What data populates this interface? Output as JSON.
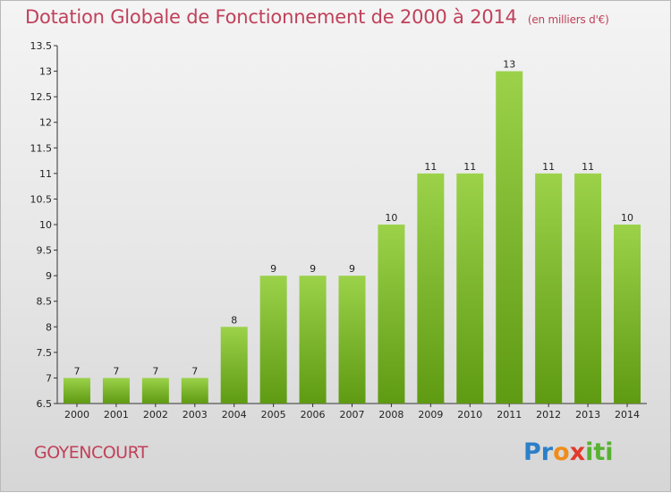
{
  "header": {
    "title": "Dotation Globale de Fonctionnement de 2000 à 2014",
    "unit": "(en milliers d'€)"
  },
  "footer": {
    "commune": "GOYENCOURT",
    "logo_letters": [
      "P",
      "r",
      "o",
      "x",
      "i",
      "t",
      "i"
    ]
  },
  "colors": {
    "bar_top": "#9bd24a",
    "bar_bottom": "#5e9a12",
    "title": "#c0415a",
    "logo": [
      "#2c7fc9",
      "#2c7fc9",
      "#f08c1a",
      "#e23a2b",
      "#58b132",
      "#58b132",
      "#58b132"
    ]
  },
  "chart_data": {
    "type": "bar",
    "title": "Dotation Globale de Fonctionnement de 2000 à 2014",
    "xlabel": "",
    "ylabel": "",
    "categories": [
      "2000",
      "2001",
      "2002",
      "2003",
      "2004",
      "2005",
      "2006",
      "2007",
      "2008",
      "2009",
      "2010",
      "2011",
      "2012",
      "2013",
      "2014"
    ],
    "values": [
      7,
      7,
      7,
      7,
      8,
      9,
      9,
      9,
      10,
      11,
      11,
      13,
      11,
      11,
      10
    ],
    "ylim": [
      6.5,
      13.5
    ],
    "yticks": [
      "6.5",
      "7",
      "7.5",
      "8",
      "8.5",
      "9",
      "9.5",
      "10",
      "10.5",
      "11",
      "11.5",
      "12",
      "12.5",
      "13",
      "13.5"
    ],
    "grid": false
  }
}
